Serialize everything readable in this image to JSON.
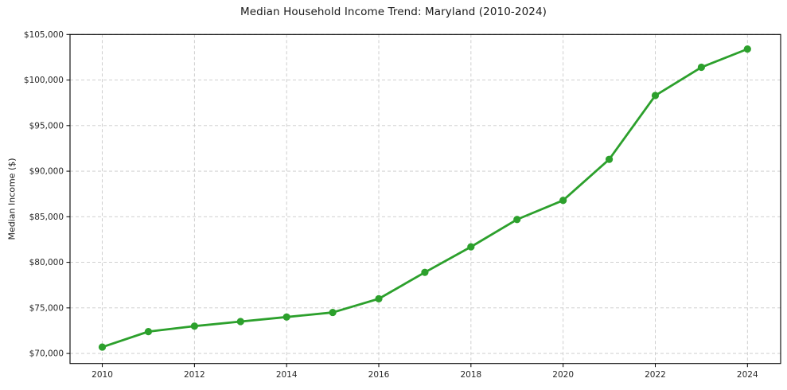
{
  "page": {
    "background": "#ffffff"
  },
  "chart_data": {
    "type": "line",
    "title": "Median Household Income Trend: Maryland (2010-2024)",
    "xlabel": "",
    "ylabel": "Median Income ($)",
    "x": [
      2010,
      2011,
      2012,
      2013,
      2014,
      2015,
      2016,
      2017,
      2018,
      2019,
      2020,
      2021,
      2022,
      2023,
      2024
    ],
    "series": [
      {
        "name": "Median Household Income",
        "color": "#2ca02c",
        "values": [
          70700,
          72400,
          73000,
          73500,
          74000,
          74500,
          76000,
          78900,
          81700,
          84700,
          86800,
          91300,
          98300,
          101400,
          103400
        ]
      }
    ],
    "x_ticks": [
      2010,
      2012,
      2014,
      2016,
      2018,
      2020,
      2022,
      2024
    ],
    "x_tick_labels": [
      "2010",
      "2012",
      "2014",
      "2016",
      "2018",
      "2020",
      "2022",
      "2024"
    ],
    "y_ticks": [
      70000,
      75000,
      80000,
      85000,
      90000,
      95000,
      100000,
      105000
    ],
    "y_tick_labels": [
      "$70,000",
      "$75,000",
      "$80,000",
      "$85,000",
      "$90,000",
      "$95,000",
      "$100,000",
      "$105,000"
    ],
    "xlim": [
      2009.3,
      2024.72
    ],
    "ylim": [
      68900,
      105000
    ],
    "grid": true,
    "grid_style": "dashed",
    "legend": "none",
    "marker": "circle",
    "line_color": "#2ca02c",
    "grid_color": "#c9c9c9",
    "axis_color": "#000000",
    "text_color": "#262626"
  }
}
